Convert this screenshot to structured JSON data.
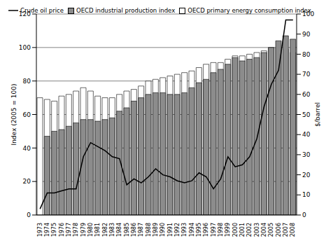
{
  "chart_data": {
    "type": "bar",
    "legend": "top",
    "grid": true,
    "y_label": "Index (2005 = 100)",
    "y2_label": "$/barrel",
    "categories": [
      "1973",
      "1974",
      "1975",
      "1976",
      "1977",
      "1978",
      "1979",
      "1980",
      "1981",
      "1982",
      "1983",
      "1984",
      "1985",
      "1986",
      "1987",
      "1988",
      "1989",
      "1990",
      "1991",
      "1992",
      "1993",
      "1994",
      "1995",
      "1996",
      "1997",
      "1998",
      "1999",
      "2000",
      "2001",
      "2002",
      "2003",
      "2004",
      "2005",
      "2006",
      "2007",
      "2008"
    ],
    "ylim": [
      0,
      120
    ],
    "yticks": [
      0,
      20,
      40,
      60,
      80,
      100,
      120
    ],
    "y2lim": [
      0,
      100
    ],
    "y2ticks": [
      0,
      10,
      20,
      30,
      40,
      50,
      60,
      70,
      80,
      90,
      100
    ],
    "series": [
      {
        "name": "Crude oil price",
        "type": "line",
        "axis": "y2",
        "color": "#000000",
        "values": [
          3,
          11,
          11,
          12,
          13,
          13,
          29,
          36,
          34,
          32,
          29,
          28,
          15,
          18,
          16,
          19,
          23,
          20,
          19,
          17,
          16,
          17,
          21,
          19,
          13,
          18,
          29,
          24,
          25,
          29,
          38,
          54,
          65,
          72,
          97,
          97
        ]
      },
      {
        "name": "OECD industrial production index",
        "type": "bar",
        "color": "#8c8c8c",
        "values": [
          null,
          47,
          50,
          51,
          53,
          55,
          57,
          57,
          56,
          57,
          58,
          62,
          64,
          68,
          70,
          72,
          73,
          73,
          72,
          72,
          73,
          76,
          79,
          81,
          85,
          87,
          90,
          94,
          92,
          93,
          94,
          97,
          100,
          104,
          107,
          105
        ]
      },
      {
        "name": "OECD primary energy consumption index",
        "type": "bar",
        "color": "#ffffff",
        "values": [
          70,
          69,
          68,
          71,
          72,
          74,
          76,
          74,
          71,
          70,
          70,
          72,
          74,
          75,
          77,
          80,
          81,
          82,
          83,
          84,
          85,
          86,
          88,
          90,
          91,
          91,
          93,
          95,
          95,
          96,
          97,
          98,
          100,
          100,
          99,
          97
        ]
      }
    ]
  }
}
